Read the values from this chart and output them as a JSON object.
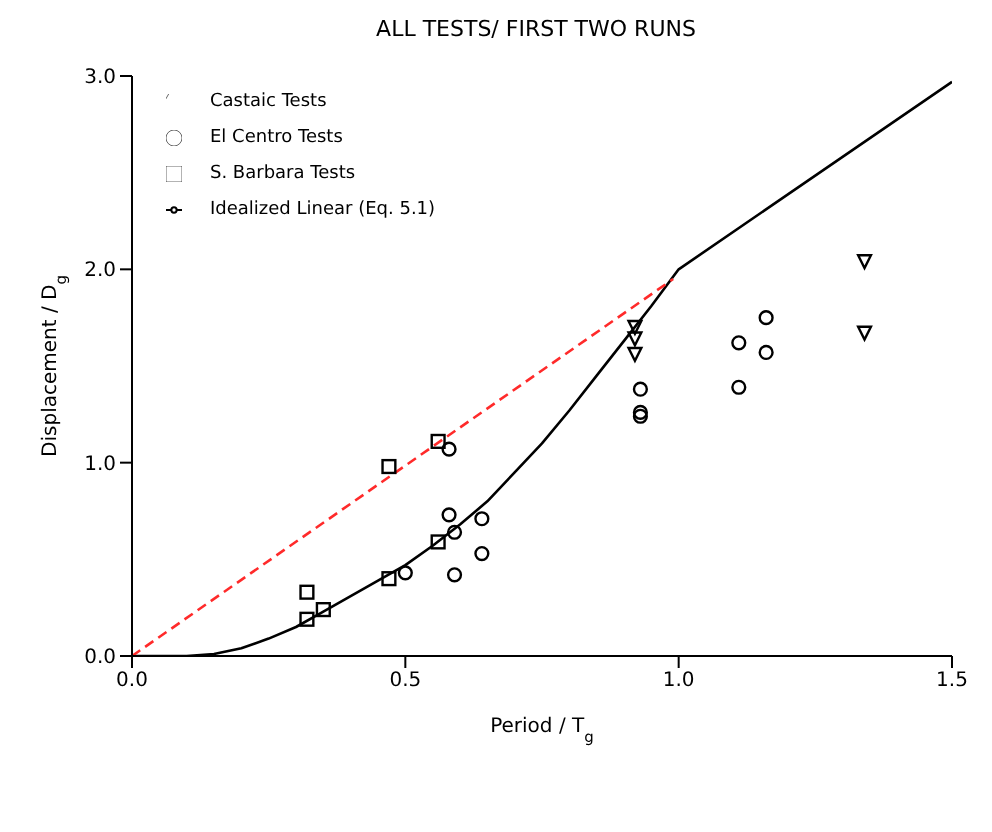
{
  "chart_data": {
    "type": "scatter",
    "title": "ALL TESTS/ FIRST TWO RUNS",
    "xlabel": "Period / T$_{g}$",
    "ylabel": "Displacement / D$_{g}$",
    "xlim": [
      0,
      1.5
    ],
    "xticks": [
      {
        "value": 0,
        "label": "0.0"
      },
      0.5,
      {
        "value": 1,
        "label": "1.0"
      },
      1.5
    ],
    "ylim": [
      0,
      3
    ],
    "yticks": [
      {
        "value": 0,
        "label": "0.0"
      },
      {
        "value": 1,
        "label": "1.0"
      },
      {
        "value": 2,
        "label": "2.0"
      },
      {
        "value": 3,
        "label": "3.0"
      }
    ],
    "legend": "top left",
    "series": [
      {
        "name": "Castaic Tests",
        "marker": "triangle",
        "color": "#000000",
        "x": [
          0.92,
          0.92,
          0.92,
          1.34,
          1.34
        ],
        "values": [
          1.7,
          1.64,
          1.56,
          2.04,
          1.67
        ]
      },
      {
        "name": "El Centro Tests",
        "marker": "circle",
        "color": "#000000",
        "x": [
          0.5,
          0.58,
          0.58,
          0.59,
          0.59,
          0.64,
          0.64,
          0.93,
          0.93,
          0.93,
          1.11,
          1.11,
          1.16,
          1.16
        ],
        "values": [
          0.43,
          1.07,
          0.73,
          0.64,
          0.42,
          0.71,
          0.53,
          1.38,
          1.24,
          1.26,
          1.62,
          1.39,
          1.75,
          1.57
        ]
      },
      {
        "name": "S. Barbara Tests",
        "marker": "square",
        "color": "#000000",
        "x": [
          0.32,
          0.32,
          0.35,
          0.47,
          0.47,
          0.56,
          0.56
        ],
        "values": [
          0.33,
          0.19,
          0.24,
          0.98,
          0.4,
          1.11,
          0.59
        ]
      },
      {
        "name": "Idealized Linear (Eq. 5.1)",
        "type": "line",
        "marker": "none",
        "line_style": "solid",
        "color": "#000000",
        "x": [
          0,
          0.1,
          0.15,
          0.2,
          0.25,
          0.3,
          0.35,
          0.4,
          0.45,
          0.5,
          0.55,
          0.6,
          0.65,
          0.7,
          0.75,
          0.8,
          0.85,
          0.9,
          0.95,
          1.0,
          1.5
        ],
        "values": [
          0,
          0,
          0.01,
          0.04,
          0.09,
          0.15,
          0.23,
          0.31,
          0.39,
          0.47,
          0.57,
          0.68,
          0.8,
          0.95,
          1.1,
          1.27,
          1.45,
          1.63,
          1.81,
          2.0,
          2.97
        ]
      },
      {
        "type": "line",
        "marker": "none",
        "line_style": "dashed",
        "color": "#ff2a2a",
        "x": [
          0,
          0.99
        ],
        "values": [
          0,
          1.95
        ]
      }
    ]
  }
}
